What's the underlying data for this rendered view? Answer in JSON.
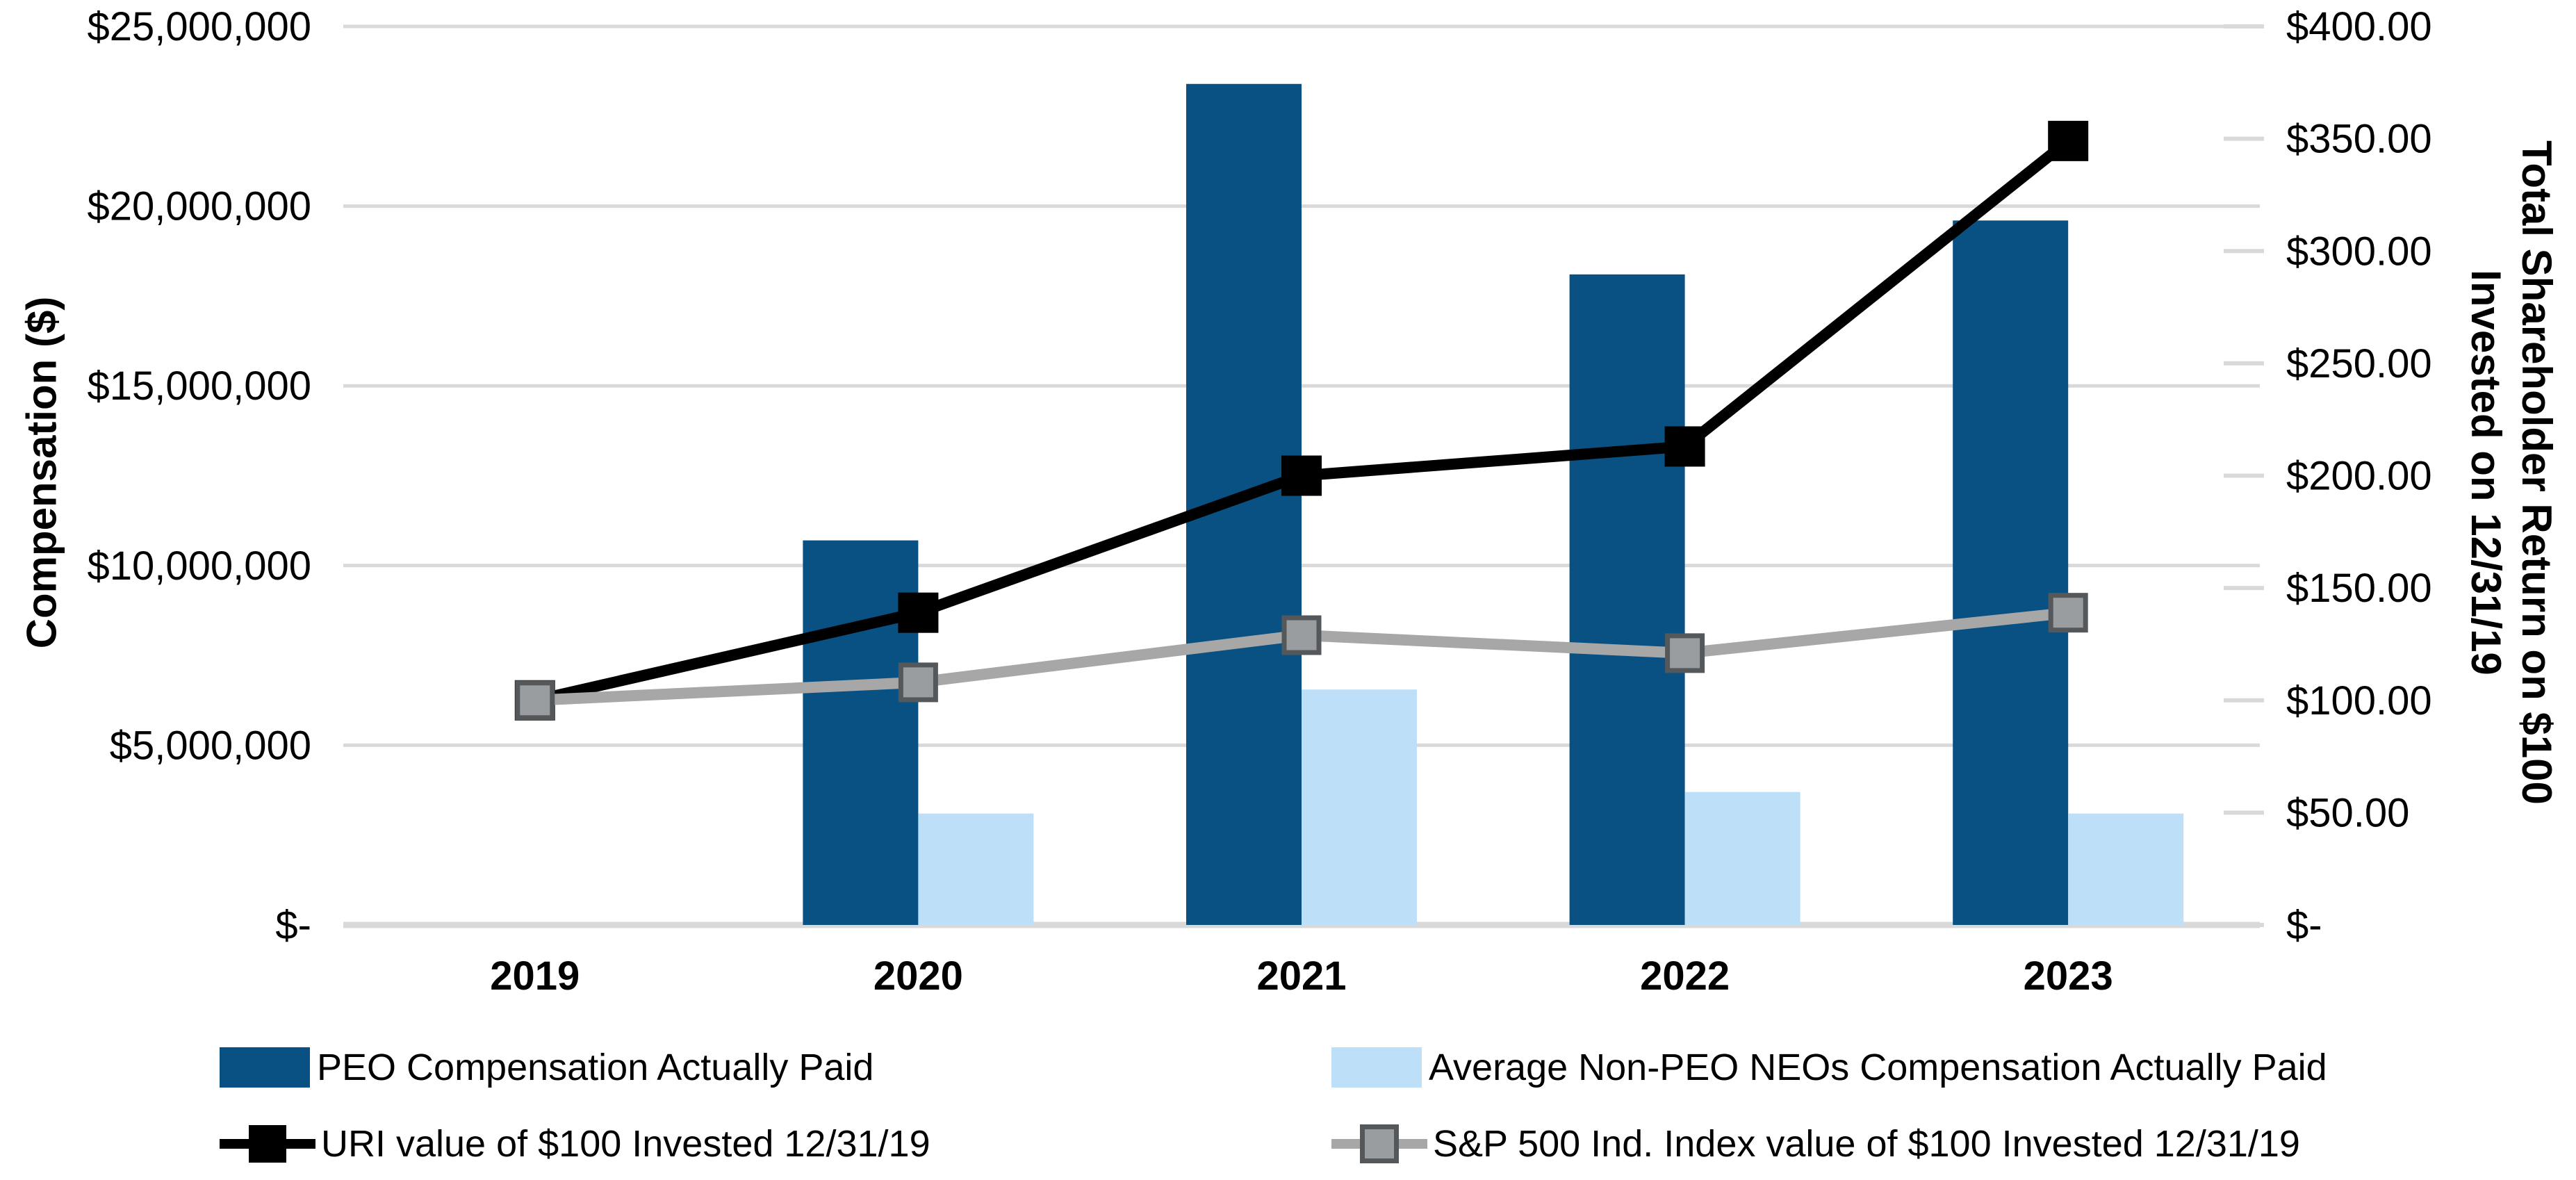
{
  "chart_data": {
    "type": "bar",
    "subtype": "combo-bar-line-dual-axis",
    "categories": [
      "2019",
      "2020",
      "2021",
      "2022",
      "2023"
    ],
    "series": [
      {
        "name": "PEO Compensation Actually Paid",
        "type": "bar",
        "axis": "left",
        "color": "#0A5183",
        "values": [
          null,
          10700000,
          23400000,
          18100000,
          19600000
        ]
      },
      {
        "name": "Average Non-PEO NEOs Compensation Actually Paid",
        "type": "bar",
        "axis": "left",
        "color": "#BDDFF7",
        "values": [
          null,
          3100000,
          6550000,
          3700000,
          3100000
        ]
      },
      {
        "name": "URI value of $100 Invested 12/31/19",
        "type": "line",
        "axis": "right",
        "color": "#000000",
        "marker_fill": "#000000",
        "marker_size": 58,
        "values": [
          100,
          139,
          200,
          213,
          349
        ]
      },
      {
        "name": "S&P 500 Ind. Index value of $100 Invested 12/31/19",
        "type": "line",
        "axis": "right",
        "color": "#A7A7A7",
        "marker_fill": "#9A9DA0",
        "marker_border": "#54585B",
        "marker_size": 50,
        "values": [
          100,
          108,
          129,
          121,
          139
        ]
      }
    ],
    "left_axis": {
      "title": "Compensation ($)",
      "min": 0,
      "max": 25000000,
      "ticks": [
        "$-",
        "$5,000,000",
        "$10,000,000",
        "$15,000,000",
        "$20,000,000",
        "$25,000,000"
      ]
    },
    "right_axis": {
      "title_line1": "Total Shareholder Return on $100",
      "title_line2": "Invested on 12/31/19",
      "min": 0,
      "max": 400,
      "ticks": [
        "$-",
        "$50.00",
        "$100.00",
        "$150.00",
        "$200.00",
        "$250.00",
        "$300.00",
        "$350.00",
        "$400.00"
      ]
    },
    "grid": "horizontal-only",
    "gridline_color": "#D9D9D9",
    "legend_position": "bottom"
  }
}
